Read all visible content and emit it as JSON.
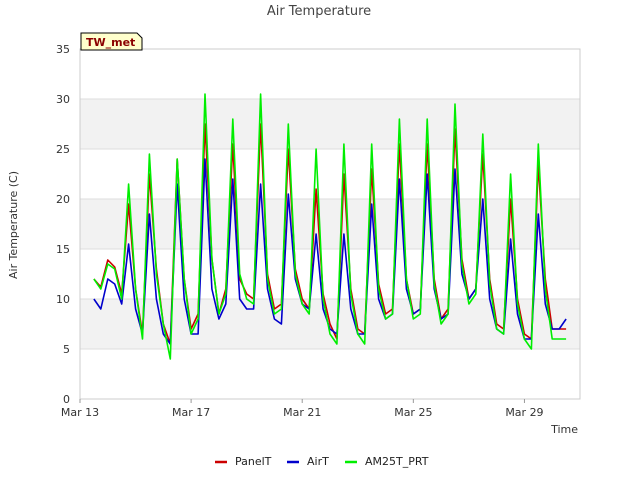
{
  "chart_data": {
    "type": "line",
    "title": "Air Temperature",
    "xlabel": "Time",
    "ylabel": "Air Temperature (C)",
    "badge": "TW_met",
    "ylim": [
      0,
      35
    ],
    "yticks": [
      0,
      5,
      10,
      15,
      20,
      25,
      30,
      35
    ],
    "xlim": [
      "Mar 13",
      "Mar 31"
    ],
    "xticks": [
      "Mar 13",
      "Mar 17",
      "Mar 21",
      "Mar 25",
      "Mar 29"
    ],
    "grid": "horizontal bands",
    "legend_position": "bottom",
    "x": [
      "Mar 13 12:00",
      "Mar 13 18:00",
      "Mar 14 00:00",
      "Mar 14 06:00",
      "Mar 14 12:00",
      "Mar 14 18:00",
      "Mar 15 00:00",
      "Mar 15 06:00",
      "Mar 15 12:00",
      "Mar 15 18:00",
      "Mar 16 00:00",
      "Mar 16 06:00",
      "Mar 16 12:00",
      "Mar 16 18:00",
      "Mar 17 00:00",
      "Mar 17 06:00",
      "Mar 17 12:00",
      "Mar 17 18:00",
      "Mar 18 00:00",
      "Mar 18 06:00",
      "Mar 18 12:00",
      "Mar 18 18:00",
      "Mar 19 00:00",
      "Mar 19 06:00",
      "Mar 19 12:00",
      "Mar 19 18:00",
      "Mar 20 00:00",
      "Mar 20 06:00",
      "Mar 20 12:00",
      "Mar 20 18:00",
      "Mar 21 00:00",
      "Mar 21 06:00",
      "Mar 21 12:00",
      "Mar 21 18:00",
      "Mar 22 00:00",
      "Mar 22 06:00",
      "Mar 22 12:00",
      "Mar 22 18:00",
      "Mar 23 00:00",
      "Mar 23 06:00",
      "Mar 23 12:00",
      "Mar 23 18:00",
      "Mar 24 00:00",
      "Mar 24 06:00",
      "Mar 24 12:00",
      "Mar 24 18:00",
      "Mar 25 00:00",
      "Mar 25 06:00",
      "Mar 25 12:00",
      "Mar 25 18:00",
      "Mar 26 00:00",
      "Mar 26 06:00",
      "Mar 26 12:00",
      "Mar 26 18:00",
      "Mar 27 00:00",
      "Mar 27 06:00",
      "Mar 27 12:00",
      "Mar 27 18:00",
      "Mar 28 00:00",
      "Mar 28 06:00",
      "Mar 28 12:00",
      "Mar 28 18:00",
      "Mar 29 00:00",
      "Mar 29 06:00",
      "Mar 29 12:00",
      "Mar 29 18:00",
      "Mar 30 00:00",
      "Mar 30 06:00",
      "Mar 30 12:00"
    ],
    "series": [
      {
        "name": "PanelT",
        "color": "#cc0000",
        "values": [
          12.0,
          11.2,
          13.9,
          13.2,
          10.5,
          19.5,
          11.0,
          6.5,
          22.5,
          13.0,
          7.5,
          5.5,
          24.0,
          12.0,
          7.0,
          8.5,
          27.5,
          14.0,
          8.5,
          11.0,
          25.5,
          12.0,
          10.5,
          10.0,
          27.5,
          12.5,
          9.0,
          9.5,
          25.0,
          13.0,
          10.0,
          9.0,
          21.0,
          10.5,
          7.5,
          6.0,
          22.5,
          11.0,
          7.0,
          6.5,
          23.0,
          11.5,
          8.5,
          9.0,
          25.5,
          12.0,
          8.5,
          9.0,
          25.5,
          12.0,
          8.0,
          9.0,
          27.0,
          14.0,
          10.0,
          11.0,
          24.5,
          12.0,
          7.5,
          7.0,
          20.0,
          10.0,
          6.5,
          6.0,
          23.5,
          12.0,
          7.0,
          7.0,
          7.0
        ]
      },
      {
        "name": "AirT",
        "color": "#0000cc",
        "values": [
          10.0,
          9.0,
          12.0,
          11.5,
          9.5,
          15.5,
          9.0,
          6.5,
          18.5,
          10.0,
          6.5,
          5.5,
          21.5,
          10.0,
          6.5,
          6.5,
          24.0,
          11.0,
          8.0,
          9.5,
          22.0,
          10.0,
          9.0,
          9.0,
          21.5,
          11.0,
          8.0,
          7.5,
          20.5,
          12.0,
          9.5,
          9.0,
          16.5,
          9.0,
          7.0,
          6.5,
          16.5,
          9.0,
          6.5,
          6.5,
          19.5,
          10.0,
          8.0,
          8.5,
          22.0,
          11.0,
          8.5,
          9.0,
          22.5,
          11.0,
          8.0,
          8.5,
          23.0,
          12.5,
          10.0,
          11.0,
          20.0,
          10.0,
          7.0,
          6.5,
          16.0,
          8.5,
          6.0,
          6.0,
          18.5,
          9.5,
          7.0,
          7.0,
          8.0
        ]
      },
      {
        "name": "AM25T_PRT",
        "color": "#00ee00",
        "values": [
          12.0,
          11.0,
          13.5,
          13.0,
          10.0,
          21.5,
          11.0,
          6.0,
          24.5,
          12.5,
          7.5,
          4.0,
          24.0,
          12.0,
          6.5,
          8.0,
          30.5,
          14.0,
          8.5,
          10.5,
          28.0,
          12.5,
          10.0,
          9.5,
          30.5,
          12.0,
          8.5,
          9.0,
          27.5,
          12.5,
          9.5,
          8.5,
          25.0,
          10.0,
          6.5,
          5.5,
          25.5,
          10.5,
          6.5,
          5.5,
          25.5,
          11.0,
          8.0,
          8.5,
          28.0,
          12.0,
          8.0,
          8.5,
          28.0,
          11.5,
          7.5,
          8.5,
          29.5,
          13.5,
          9.5,
          10.5,
          26.5,
          11.5,
          7.0,
          6.5,
          22.5,
          9.5,
          6.0,
          5.0,
          25.5,
          11.0,
          6.0,
          6.0,
          6.0
        ]
      }
    ]
  }
}
